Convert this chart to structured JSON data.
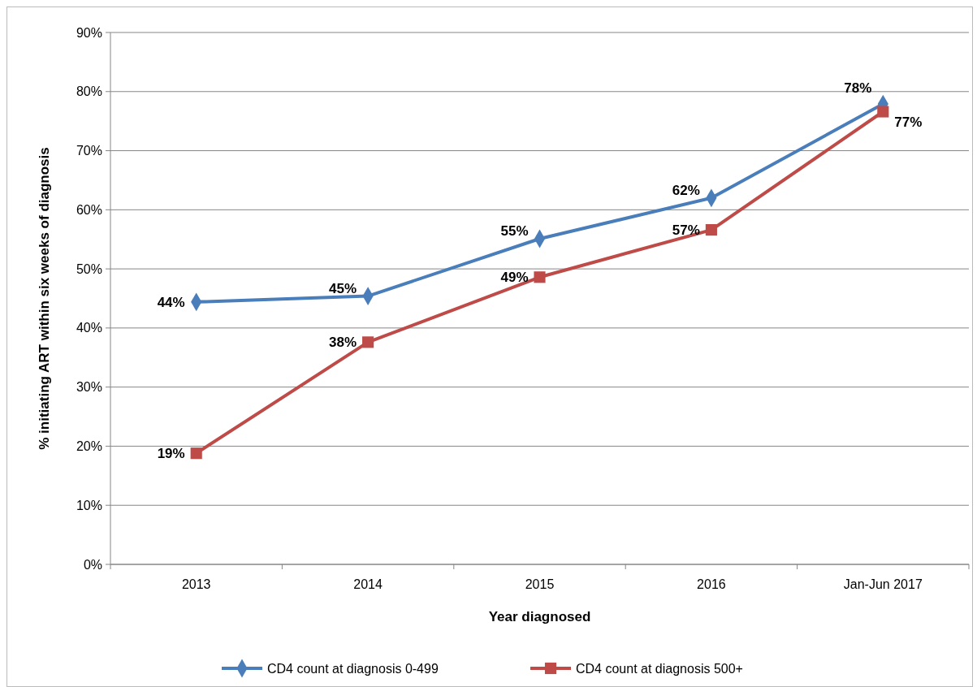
{
  "chart_data": {
    "type": "line",
    "xlabel": "Year diagnosed",
    "ylabel": "% initiating ART within six weeks of diagnosis",
    "categories": [
      "2013",
      "2014",
      "2015",
      "2016",
      "Jan-Jun 2017"
    ],
    "ylim": [
      0,
      90
    ],
    "yticks": [
      {
        "value": 0,
        "label": "0%"
      },
      {
        "value": 10,
        "label": "10%"
      },
      {
        "value": 20,
        "label": "20%"
      },
      {
        "value": 30,
        "label": "30%"
      },
      {
        "value": 40,
        "label": "40%"
      },
      {
        "value": 50,
        "label": "50%"
      },
      {
        "value": 60,
        "label": "60%"
      },
      {
        "value": 70,
        "label": "70%"
      },
      {
        "value": 80,
        "label": "80%"
      },
      {
        "value": 90,
        "label": "90%"
      }
    ],
    "grid": "y",
    "legend": "bottom",
    "line_style": "solid",
    "series": [
      {
        "name": "CD4 count at diagnosis 0-499",
        "color": "#4a7ebb",
        "marker": "diamond",
        "values": [
          44.4,
          45.4,
          55.1,
          62.0,
          77.9
        ],
        "value_labels": [
          "44%",
          "45%",
          "55%",
          "62%",
          "78%"
        ]
      },
      {
        "name": "CD4 count at diagnosis 500+",
        "color": "#be4b48",
        "marker": "square",
        "values": [
          18.8,
          37.6,
          48.6,
          56.6,
          76.6
        ],
        "value_labels": [
          "19%",
          "38%",
          "49%",
          "57%",
          "77%"
        ]
      }
    ]
  }
}
